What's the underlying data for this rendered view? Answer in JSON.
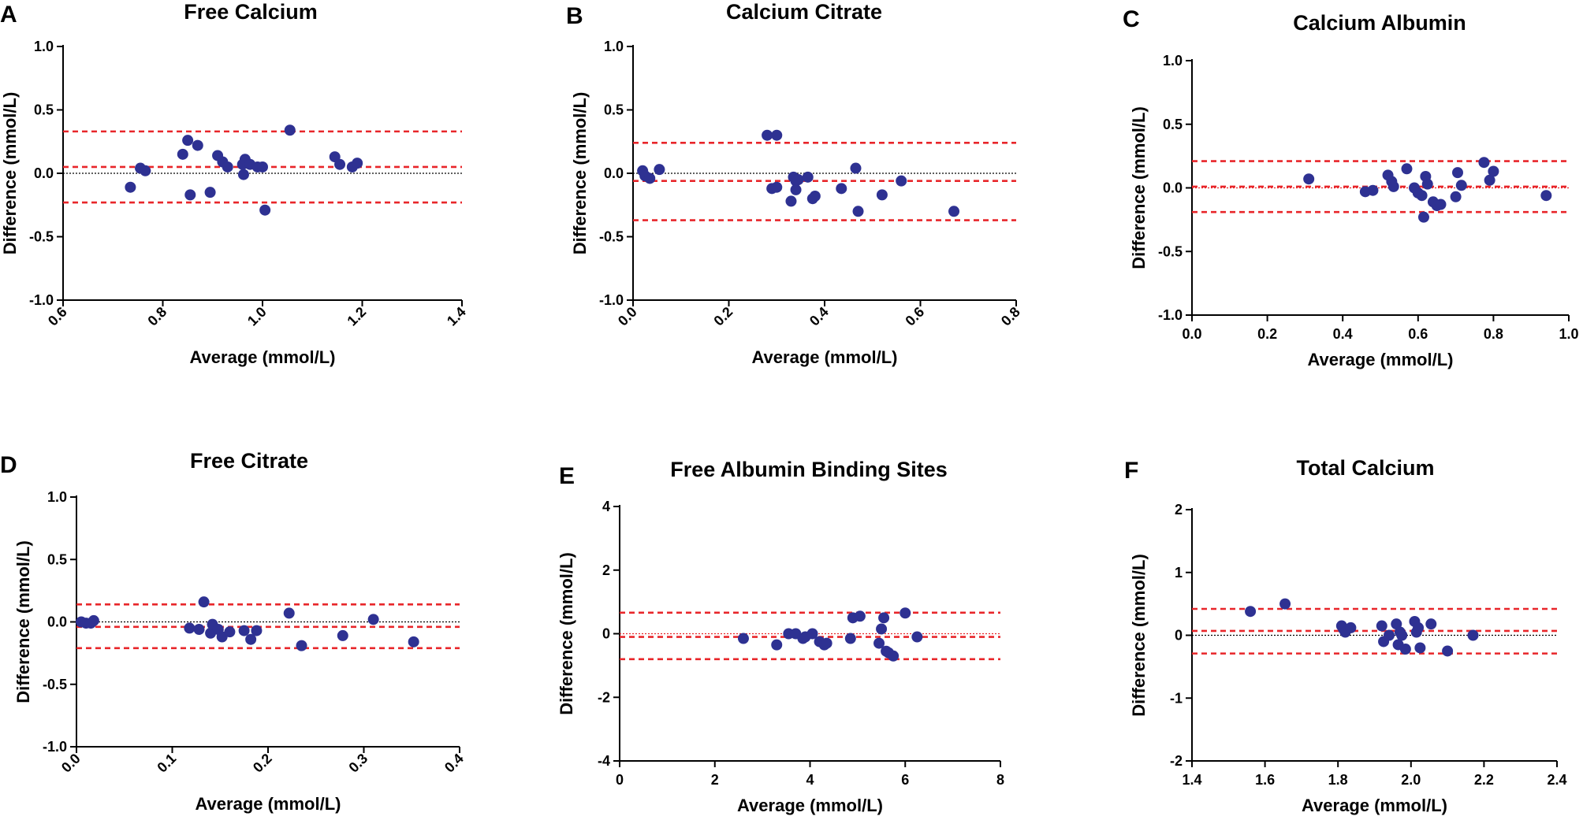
{
  "colors": {
    "points": "#2e3192",
    "limits": "#e8262a",
    "axis": "#000000"
  },
  "chart_data": [
    {
      "panel": "A",
      "type": "scatter",
      "title": "Free Calcium",
      "xlabel": "Average (mmol/L)",
      "ylabel": "Difference (mmol/L)",
      "xlim": [
        0.6,
        1.4
      ],
      "ylim": [
        -1.0,
        1.0
      ],
      "xticks": [
        "0.6",
        "0.8",
        "1.0",
        "1.2",
        "1.4"
      ],
      "xticks_rotated": true,
      "yticks": [
        "-1.0",
        "-0.5",
        "0.0",
        "0.5",
        "1.0"
      ],
      "mean_bias": 0.05,
      "upper_loa": 0.33,
      "lower_loa": -0.23,
      "zero_line": "black",
      "x": [
        0.735,
        0.755,
        0.765,
        0.84,
        0.85,
        0.855,
        0.87,
        0.895,
        0.91,
        0.92,
        0.93,
        0.96,
        0.962,
        0.965,
        0.975,
        0.99,
        1.0,
        1.005,
        1.055,
        1.145,
        1.155,
        1.18,
        1.19
      ],
      "y": [
        -0.11,
        0.04,
        0.02,
        0.15,
        0.26,
        -0.17,
        0.22,
        -0.15,
        0.14,
        0.09,
        0.05,
        0.07,
        -0.01,
        0.11,
        0.07,
        0.05,
        0.05,
        -0.29,
        0.34,
        0.13,
        0.07,
        0.05,
        0.08
      ]
    },
    {
      "panel": "B",
      "type": "scatter",
      "title": "Calcium Citrate",
      "xlabel": "Average (mmol/L)",
      "ylabel": "Difference (mmol/L)",
      "xlim": [
        0.0,
        0.8
      ],
      "ylim": [
        -1.0,
        1.0
      ],
      "xticks": [
        "0.0",
        "0.2",
        "0.4",
        "0.6",
        "0.8"
      ],
      "xticks_rotated": true,
      "yticks": [
        "-1.0",
        "-0.5",
        "0.0",
        "0.5",
        "1.0"
      ],
      "mean_bias": -0.06,
      "upper_loa": 0.24,
      "lower_loa": -0.37,
      "zero_line": "black",
      "x": [
        0.02,
        0.025,
        0.035,
        0.055,
        0.28,
        0.29,
        0.3,
        0.3,
        0.33,
        0.335,
        0.34,
        0.34,
        0.345,
        0.365,
        0.375,
        0.38,
        0.435,
        0.465,
        0.47,
        0.52,
        0.56,
        0.67
      ],
      "y": [
        0.02,
        -0.02,
        -0.04,
        0.03,
        0.3,
        -0.12,
        0.3,
        -0.11,
        -0.22,
        -0.03,
        -0.06,
        -0.13,
        -0.05,
        -0.03,
        -0.2,
        -0.18,
        -0.12,
        0.04,
        -0.3,
        -0.17,
        -0.06,
        -0.3
      ]
    },
    {
      "panel": "C",
      "type": "scatter",
      "title": "Calcium Albumin",
      "xlabel": "Average (mmol/L)",
      "ylabel": "Difference (mmol/L)",
      "xlim": [
        0.0,
        1.0
      ],
      "ylim": [
        -1.0,
        1.0
      ],
      "xticks": [
        "0.0",
        "0.2",
        "0.4",
        "0.6",
        "0.8",
        "1.0"
      ],
      "xticks_rotated": false,
      "yticks": [
        "-1.0",
        "-0.5",
        "0.0",
        "0.5",
        "1.0"
      ],
      "mean_bias": 0.01,
      "upper_loa": 0.21,
      "lower_loa": -0.19,
      "zero_line": "red",
      "x": [
        0.31,
        0.46,
        0.48,
        0.52,
        0.53,
        0.535,
        0.57,
        0.59,
        0.6,
        0.61,
        0.615,
        0.62,
        0.625,
        0.64,
        0.65,
        0.66,
        0.7,
        0.705,
        0.715,
        0.775,
        0.79,
        0.8,
        0.94
      ],
      "y": [
        0.07,
        -0.03,
        -0.02,
        0.1,
        0.05,
        0.01,
        0.15,
        0.0,
        -0.04,
        -0.06,
        -0.23,
        0.09,
        0.03,
        -0.11,
        -0.14,
        -0.13,
        -0.07,
        0.12,
        0.02,
        0.2,
        0.06,
        0.13,
        -0.06
      ]
    },
    {
      "panel": "D",
      "type": "scatter",
      "title": "Free Citrate",
      "xlabel": "Average (mmol/L)",
      "ylabel": "Difference (mmol/L)",
      "xlim": [
        0.0,
        0.4
      ],
      "ylim": [
        -1.0,
        1.0
      ],
      "xticks": [
        "0.0",
        "0.1",
        "0.2",
        "0.3",
        "0.4"
      ],
      "xticks_rotated": true,
      "yticks": [
        "-1.0",
        "-0.5",
        "0.0",
        "0.5",
        "1.0"
      ],
      "mean_bias": -0.04,
      "upper_loa": 0.14,
      "lower_loa": -0.21,
      "zero_line": "black",
      "x": [
        0.005,
        0.01,
        0.015,
        0.018,
        0.118,
        0.128,
        0.133,
        0.14,
        0.142,
        0.148,
        0.152,
        0.16,
        0.175,
        0.182,
        0.188,
        0.222,
        0.235,
        0.278,
        0.31,
        0.352
      ],
      "y": [
        0.0,
        -0.01,
        -0.01,
        0.01,
        -0.05,
        -0.06,
        0.16,
        -0.09,
        -0.02,
        -0.06,
        -0.12,
        -0.08,
        -0.07,
        -0.14,
        -0.07,
        0.07,
        -0.19,
        -0.11,
        0.02,
        -0.16
      ]
    },
    {
      "panel": "E",
      "type": "scatter",
      "title": "Free Albumin Binding Sites",
      "xlabel": "Average (mmol/L)",
      "ylabel": "Difference (mmol/L)",
      "xlim": [
        0,
        8
      ],
      "ylim": [
        -4,
        4
      ],
      "xticks": [
        "0",
        "2",
        "4",
        "6",
        "8"
      ],
      "xticks_rotated": false,
      "yticks": [
        "-4",
        "-2",
        "0",
        "2",
        "4"
      ],
      "mean_bias": -0.1,
      "upper_loa": 0.66,
      "lower_loa": -0.8,
      "zero_line": "red",
      "x": [
        2.6,
        3.3,
        3.55,
        3.7,
        3.85,
        3.9,
        4.05,
        4.2,
        4.3,
        4.35,
        4.85,
        4.9,
        5.05,
        5.45,
        5.5,
        5.55,
        5.6,
        5.65,
        5.75,
        6.0,
        6.25
      ],
      "y": [
        -0.15,
        -0.35,
        0.0,
        0.0,
        -0.15,
        -0.1,
        0.0,
        -0.25,
        -0.35,
        -0.3,
        -0.15,
        0.5,
        0.55,
        -0.3,
        0.15,
        0.5,
        -0.55,
        -0.6,
        -0.7,
        0.65,
        -0.1
      ]
    },
    {
      "panel": "F",
      "type": "scatter",
      "title": "Total Calcium",
      "xlabel": "Average (mmol/L)",
      "ylabel": "Difference (mmol/L)",
      "xlim": [
        1.4,
        2.4
      ],
      "ylim": [
        -2,
        2
      ],
      "xticks": [
        "1.4",
        "1.6",
        "1.8",
        "2.0",
        "2.2",
        "2.4"
      ],
      "xticks_rotated": false,
      "yticks": [
        "-2",
        "-1",
        "0",
        "1",
        "2"
      ],
      "mean_bias": 0.07,
      "upper_loa": 0.42,
      "lower_loa": -0.29,
      "zero_line": "black",
      "x": [
        1.56,
        1.655,
        1.81,
        1.815,
        1.82,
        1.835,
        1.92,
        1.925,
        1.94,
        1.96,
        1.965,
        1.97,
        1.975,
        1.985,
        2.01,
        2.015,
        2.02,
        2.025,
        2.055,
        2.1,
        2.17
      ],
      "y": [
        0.38,
        0.5,
        0.15,
        0.1,
        0.05,
        0.12,
        0.15,
        -0.1,
        0.0,
        0.18,
        -0.15,
        0.05,
        0.0,
        -0.22,
        0.22,
        0.05,
        0.12,
        -0.2,
        0.18,
        -0.25,
        0.0
      ]
    }
  ]
}
